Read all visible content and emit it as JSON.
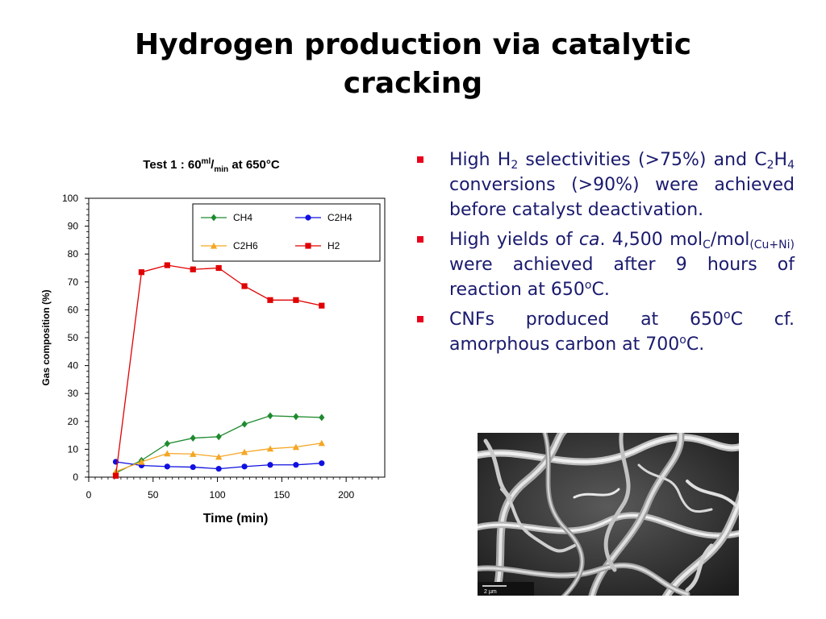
{
  "slide": {
    "title_line1": "Hydrogen production via catalytic",
    "title_line2": "cracking"
  },
  "chart_data": {
    "type": "line",
    "title": {
      "text": "Test 1 : 60",
      "sup": "ml",
      "slash": "/",
      "sub": "min",
      "suffix": " at 650°C"
    },
    "xlabel": "Time (min)",
    "ylabel": "Gas composition (%)",
    "xlim": [
      0,
      230
    ],
    "ylim": [
      0,
      100
    ],
    "xticks": [
      0,
      50,
      100,
      150,
      200
    ],
    "yticks": [
      0,
      10,
      20,
      30,
      40,
      50,
      60,
      70,
      80,
      90,
      100
    ],
    "x": [
      21,
      41,
      61,
      81,
      101,
      121,
      141,
      161,
      181
    ],
    "grid": false,
    "legend_position": "top-right",
    "series": [
      {
        "name": "CH4",
        "color": "#1e8a2e",
        "marker": "diamond",
        "values": [
          1.5,
          6,
          12,
          14,
          14.5,
          19,
          22,
          21.7,
          21.4
        ]
      },
      {
        "name": "C2H4",
        "color": "#1010e0",
        "marker": "circle",
        "values": [
          5.5,
          4.2,
          3.8,
          3.6,
          3.0,
          3.8,
          4.4,
          4.4,
          5.0
        ]
      },
      {
        "name": "C2H6",
        "color": "#f5a623",
        "marker": "triangle",
        "values": [
          2,
          5.5,
          8.5,
          8.3,
          7.3,
          9,
          10.2,
          10.8,
          12.2
        ]
      },
      {
        "name": "H2",
        "color": "#e00000",
        "marker": "square",
        "values": [
          0.5,
          73.5,
          76,
          74.5,
          75,
          68.5,
          63.5,
          63.5,
          61.5
        ]
      }
    ]
  },
  "bullets": {
    "b1": {
      "t1": "High H",
      "s1": "2",
      "t2": " selectivities (>75%) and C",
      "s2": "2",
      "t3": "H",
      "s3": "4",
      "t4": " conversions (>90%) were achieved before catalyst deactivation."
    },
    "b2": {
      "t1": "High yields of ",
      "ca": "ca",
      "t2": ". 4,500 mol",
      "s1": "C",
      "t3": "/mol",
      "s2": "(Cu+Ni)",
      "t4": " were achieved after 9 hours of reaction at 650",
      "sup1": "o",
      "t5": "C."
    },
    "b3": {
      "t1": "CNFs produced at 650",
      "sup1": "o",
      "t2": "C cf. amorphous carbon at 700",
      "sup2": "o",
      "t3": "C."
    }
  },
  "image": {
    "scale_label": "2 µm"
  }
}
